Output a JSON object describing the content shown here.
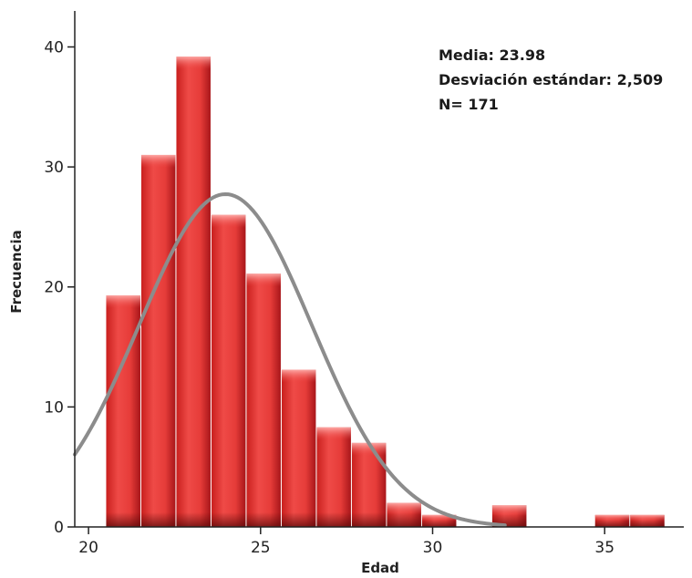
{
  "chart_data": {
    "type": "bar",
    "title": "",
    "xlabel": "Edad",
    "ylabel": "Frecuencia",
    "xlim": [
      19.6,
      37.3
    ],
    "ylim": [
      0,
      43
    ],
    "x_ticks": [
      20,
      25,
      30,
      35
    ],
    "y_ticks": [
      0,
      10,
      20,
      30,
      40
    ],
    "bin_width": 1.02,
    "bins": [
      {
        "start": 20.5,
        "value": 19.3
      },
      {
        "start": 21.52,
        "value": 31
      },
      {
        "start": 22.54,
        "value": 39.2
      },
      {
        "start": 23.56,
        "value": 26
      },
      {
        "start": 24.58,
        "value": 21.1
      },
      {
        "start": 25.6,
        "value": 13.1
      },
      {
        "start": 26.62,
        "value": 8.3
      },
      {
        "start": 27.64,
        "value": 7
      },
      {
        "start": 28.66,
        "value": 2
      },
      {
        "start": 29.68,
        "value": 1
      },
      {
        "start": 31.72,
        "value": 1.8
      },
      {
        "start": 34.71,
        "value": 1
      },
      {
        "start": 35.73,
        "value": 1
      }
    ],
    "normal_curve": {
      "mean": 23.98,
      "sd": 2.509,
      "n": 171,
      "x_range": [
        19.6,
        32.1
      ]
    },
    "bar_color": "#e8413e",
    "curve_color": "#8c8c8c",
    "grid": false
  },
  "stats_box": {
    "line1": "Media: 23.98",
    "line2": "Desviación estándar: 2,509",
    "line3": "N= 171"
  }
}
